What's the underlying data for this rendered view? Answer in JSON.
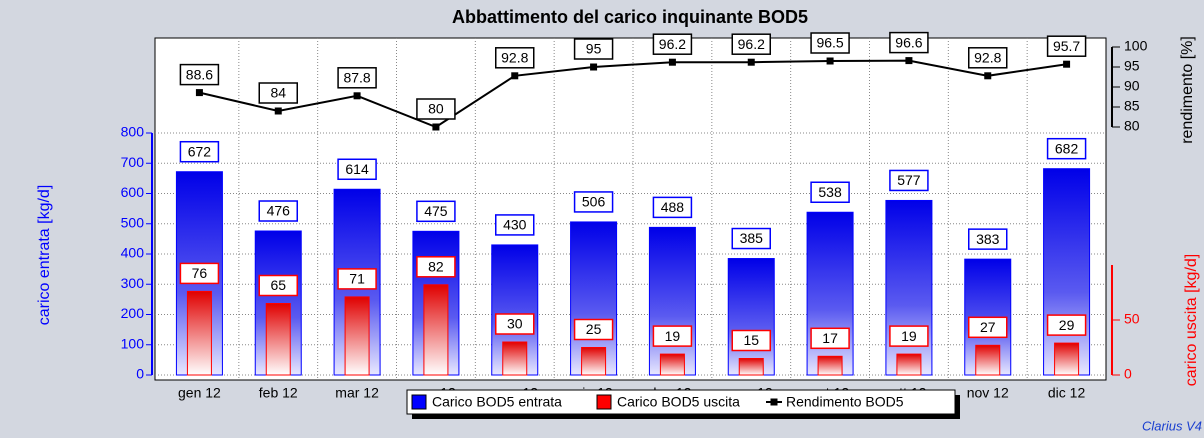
{
  "chart_data": {
    "type": "bar",
    "title": "Abbattimento del carico inquinante BOD5",
    "categories": [
      "gen 12",
      "feb 12",
      "mar 12",
      "apr 12",
      "mag 12",
      "giu 12",
      "lug 12",
      "ago 12",
      "set 12",
      "ott 12",
      "nov 12",
      "dic 12"
    ],
    "series": [
      {
        "name": "Carico BOD5 entrata",
        "color": "#0000ff",
        "values": [
          672,
          476,
          614,
          475,
          430,
          506,
          488,
          385,
          538,
          577,
          383,
          682
        ]
      },
      {
        "name": "Carico BOD5 uscita",
        "color": "#ff0000",
        "axis": "y2",
        "values": [
          76,
          65,
          71,
          82,
          30,
          25,
          19,
          15,
          17,
          19,
          27,
          29
        ]
      },
      {
        "name": "Rendimento BOD5",
        "color": "#000000",
        "axis": "y3",
        "values": [
          88.6,
          84,
          87.8,
          80,
          92.8,
          95,
          96.2,
          96.2,
          96.5,
          96.6,
          92.8,
          95.7
        ]
      }
    ],
    "ylabel": "carico entrata [kg/d]",
    "y2label": "carico uscita [kg/d]",
    "y3label": "rendimento [%]",
    "ylim": [
      0,
      800
    ],
    "yticks": [
      0,
      100,
      200,
      300,
      400,
      500,
      600,
      700,
      800
    ],
    "y2lim": [
      0,
      100
    ],
    "y2ticks": [
      0,
      50
    ],
    "y3lim": [
      80,
      100
    ],
    "y3ticks": [
      80,
      85,
      90,
      95,
      100
    ],
    "grid": true,
    "footer": "Clarius V4"
  }
}
